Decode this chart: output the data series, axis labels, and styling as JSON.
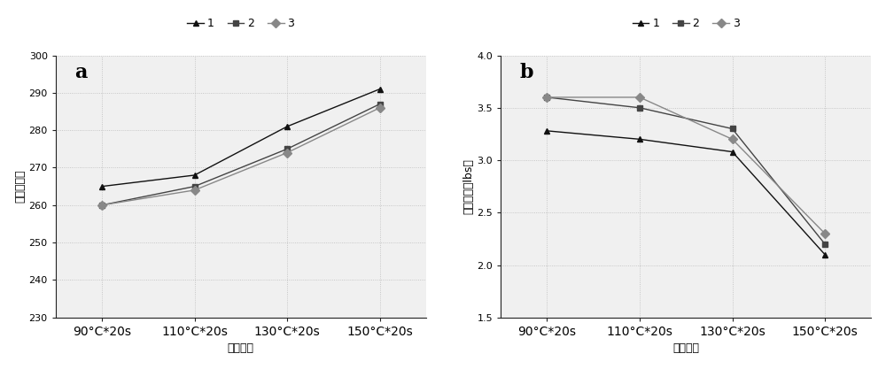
{
  "x_labels": [
    "90°C*20s",
    "110°C*20s",
    "130°C*20s",
    "150°C*20s"
  ],
  "chart_a": {
    "title": "a",
    "ylabel": "折皮回复角",
    "xlabel": "反应条件",
    "ylim": [
      230,
      300
    ],
    "yticks": [
      230,
      240,
      250,
      260,
      270,
      280,
      290,
      300
    ],
    "series": [
      {
        "label": "1",
        "marker": "^",
        "values": [
          265,
          268,
          281,
          291
        ],
        "color": "#111111"
      },
      {
        "label": "2",
        "marker": "s",
        "values": [
          260,
          265,
          275,
          287
        ],
        "color": "#444444"
      },
      {
        "label": "3",
        "marker": "D",
        "values": [
          260,
          264,
          274,
          286
        ],
        "color": "#888888"
      }
    ]
  },
  "chart_b": {
    "title": "b",
    "ylabel": "纵向断裂（lbs）",
    "xlabel": "反应条件",
    "ylim": [
      1.5,
      4.0
    ],
    "yticks": [
      1.5,
      2.0,
      2.5,
      3.0,
      3.5,
      4.0
    ],
    "series": [
      {
        "label": "1",
        "marker": "^",
        "values": [
          3.28,
          3.2,
          3.08,
          2.1
        ],
        "color": "#111111"
      },
      {
        "label": "2",
        "marker": "s",
        "values": [
          3.6,
          3.5,
          3.3,
          2.2
        ],
        "color": "#444444"
      },
      {
        "label": "3",
        "marker": "D",
        "values": [
          3.6,
          3.6,
          3.2,
          2.3
        ],
        "color": "#888888"
      }
    ]
  },
  "background_color": "#ffffff",
  "plot_bg_color": "#f0f0f0",
  "grid_color": "#bbbbbb",
  "fig_width": 10.0,
  "fig_height": 4.17,
  "dpi": 100
}
